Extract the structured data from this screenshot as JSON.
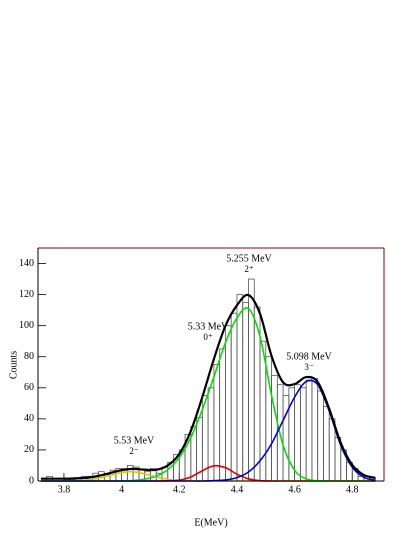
{
  "chart_data": {
    "type": "histogram",
    "xlabel": "E(MeV)",
    "ylabel": "Counts",
    "xlim": [
      3.71,
      4.91
    ],
    "ylim": [
      0,
      150
    ],
    "xticks": [
      3.8,
      4,
      4.2,
      4.4,
      4.6,
      4.8
    ],
    "yticks": [
      0,
      20,
      40,
      60,
      80,
      100,
      120,
      140
    ],
    "hist_color": "#555555",
    "bins": [
      3.72,
      3.74,
      3.76,
      3.78,
      3.8,
      3.82,
      3.84,
      3.86,
      3.88,
      3.9,
      3.92,
      3.94,
      3.96,
      3.98,
      4.0,
      4.02,
      4.04,
      4.06,
      4.08,
      4.1,
      4.12,
      4.14,
      4.16,
      4.18,
      4.2,
      4.22,
      4.24,
      4.26,
      4.28,
      4.3,
      4.32,
      4.34,
      4.36,
      4.38,
      4.4,
      4.42,
      4.44,
      4.46,
      4.48,
      4.5,
      4.52,
      4.54,
      4.56,
      4.58,
      4.6,
      4.62,
      4.64,
      4.66,
      4.68,
      4.7,
      4.72,
      4.74,
      4.76,
      4.78,
      4.8,
      4.82,
      4.84,
      4.86,
      4.88,
      4.9
    ],
    "counts": [
      0,
      3,
      0,
      0,
      1,
      1,
      2,
      3,
      3,
      5,
      6,
      4,
      7,
      8,
      8,
      10,
      9,
      7,
      6,
      8,
      5,
      9,
      12,
      17,
      20,
      30,
      35,
      41,
      55,
      60,
      75,
      85,
      100,
      108,
      120,
      115,
      130,
      112,
      90,
      80,
      68,
      62,
      55,
      60,
      62,
      60,
      65,
      66,
      58,
      48,
      40,
      28,
      20,
      12,
      8,
      3,
      3,
      2,
      0
    ],
    "curves": {
      "x": [
        3.72,
        3.76,
        3.8,
        3.84,
        3.88,
        3.92,
        3.96,
        4.0,
        4.04,
        4.08,
        4.12,
        4.16,
        4.2,
        4.24,
        4.28,
        4.32,
        4.36,
        4.4,
        4.44,
        4.48,
        4.52,
        4.56,
        4.6,
        4.64,
        4.68,
        4.72,
        4.76,
        4.8,
        4.84,
        4.88
      ],
      "series": [
        {
          "color": "#e8c000",
          "values": [
            0,
            0,
            0,
            0.2,
            0.6,
            1.8,
            3.6,
            5.5,
            5.9,
            4.6,
            2.6,
            1.1,
            0.3,
            0.1,
            0,
            0,
            0,
            0,
            0,
            0,
            0,
            0,
            0,
            0,
            0,
            0,
            0,
            0,
            0,
            0
          ]
        },
        {
          "color": "#e00000",
          "values": [
            0,
            0,
            0,
            0,
            0,
            0,
            0,
            0,
            0,
            0,
            0,
            0.1,
            0.6,
            2.6,
            6.6,
            9.8,
            8.6,
            4.4,
            1.4,
            0.2,
            0,
            0,
            0,
            0,
            0,
            0,
            0,
            0,
            0,
            0
          ]
        },
        {
          "color": "#00e000",
          "values": [
            0,
            0,
            0,
            0,
            0,
            0,
            0,
            0,
            0.4,
            1.2,
            3.1,
            7.3,
            15,
            28,
            46,
            67,
            89,
            105,
            111,
            93,
            55,
            23,
            6.9,
            1.4,
            0.2,
            0,
            0,
            0,
            0,
            0
          ]
        },
        {
          "color": "#0000dd",
          "values": [
            0,
            0,
            0,
            0,
            0,
            0,
            0,
            0,
            0,
            0,
            0,
            0,
            0,
            0,
            0,
            0.2,
            0.7,
            2.2,
            5.8,
            13,
            24,
            39,
            54,
            64,
            62,
            45,
            23,
            8.8,
            2.4,
            0.5
          ]
        },
        {
          "color": "#000000",
          "values": [
            1.5,
            1.5,
            1.5,
            1.7,
            2.1,
            3.3,
            5.1,
            7.0,
            7.8,
            7.3,
            7.2,
            10,
            17.4,
            32.2,
            54.1,
            78.5,
            99.8,
            113.1,
            119.7,
            107.7,
            80.5,
            63.5,
            62.4,
            66.9,
            63.7,
            46.5,
            24.5,
            10.3,
            3.9,
            2.0
          ]
        }
      ]
    },
    "annotations": [
      {
        "text": "5.255 MeV",
        "spin": "2⁺"
      },
      {
        "text": "5.33 MeV",
        "spin": "0⁺"
      },
      {
        "text": "5.098 MeV",
        "spin": "3⁻"
      },
      {
        "text": "5.53 MeV",
        "spin": "2⁻"
      }
    ]
  }
}
